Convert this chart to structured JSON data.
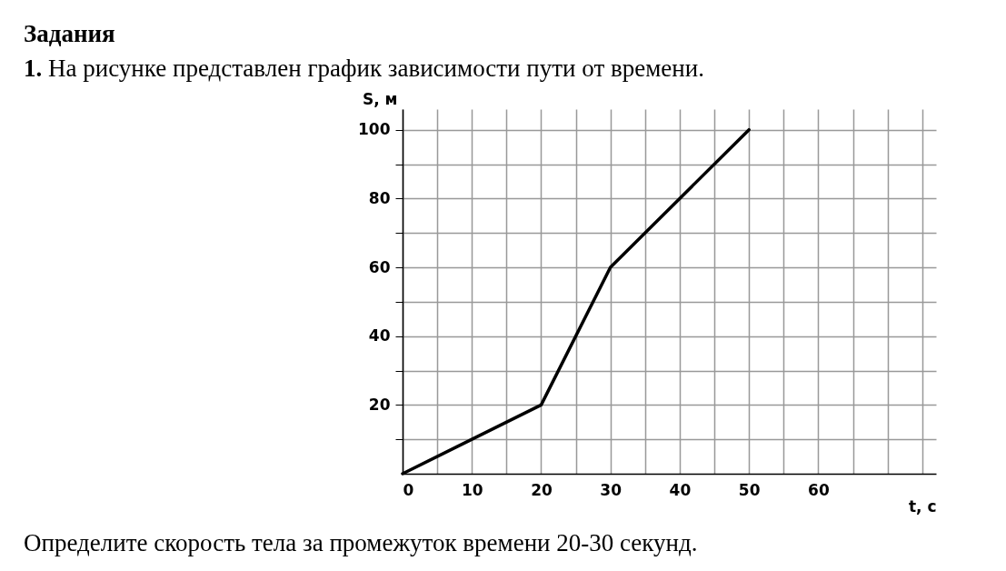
{
  "chart_data": {
    "type": "line",
    "title": "Задания",
    "subtitle": "1. На рисунке представлен график зависимости пути от времени.",
    "annotations": [
      "Определите скорость тела за промежуток времени 20-30 секунд."
    ],
    "xlabel": "t, c",
    "ylabel": "S, м",
    "x": [
      0,
      20,
      30,
      50
    ],
    "series": [
      {
        "color": "#000000",
        "values": [
          0,
          20,
          60,
          100
        ]
      }
    ],
    "xlim": [
      0,
      77
    ],
    "ylim": [
      0,
      106
    ],
    "xticks": [
      {
        "value": 0,
        "label": "0"
      },
      {
        "value": 5,
        "label": null
      },
      10,
      {
        "value": 15,
        "label": null
      },
      20,
      {
        "value": 25,
        "label": null
      },
      30,
      {
        "value": 35,
        "label": null
      },
      40,
      {
        "value": 45,
        "label": null
      },
      50,
      {
        "value": 55,
        "label": null
      },
      60,
      {
        "value": 65,
        "label": null
      },
      {
        "value": 70,
        "label": null
      },
      {
        "value": 75,
        "label": null
      }
    ],
    "yticks": [
      {
        "value": 10,
        "label": null
      },
      20,
      {
        "value": 30,
        "label": null
      },
      40,
      {
        "value": 50,
        "label": null
      },
      60,
      {
        "value": 70,
        "label": null
      },
      80,
      {
        "value": 90,
        "label": null
      },
      100
    ],
    "grid": true,
    "marker": "none",
    "line_style": "solid"
  }
}
